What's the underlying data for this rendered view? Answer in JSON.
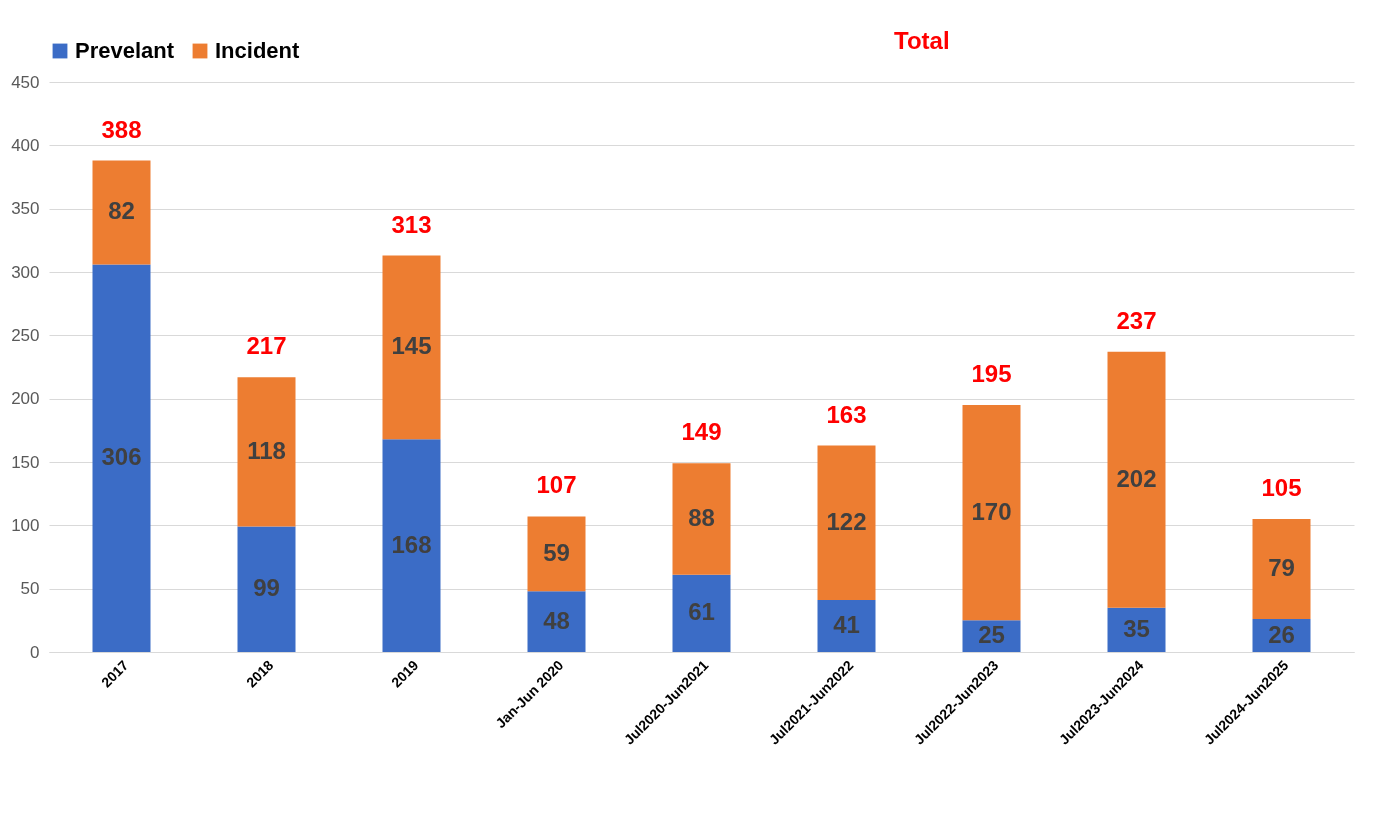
{
  "chart_data": {
    "type": "bar",
    "stacked": true,
    "categories": [
      "2017",
      "2018",
      "2019",
      "Jan-Jun 2020",
      "Jul2020-Jun2021",
      "Jul2021-Jun2022",
      "Jul2022-Jun2023",
      "Jul2023-Jun2024",
      "Jul2024-Jun2025"
    ],
    "series": [
      {
        "name": "Prevelant",
        "color": "#3b6cc6",
        "values": [
          306,
          99,
          168,
          48,
          61,
          41,
          25,
          35,
          26
        ]
      },
      {
        "name": "Incident",
        "color": "#ed7d31",
        "values": [
          82,
          118,
          145,
          59,
          88,
          122,
          170,
          202,
          79
        ]
      }
    ],
    "totals": [
      "388",
      "217",
      "313",
      "107",
      "149",
      "163",
      "195",
      "237",
      "105"
    ],
    "annotations": [
      "Total"
    ],
    "data_labels": true,
    "ylim": [
      0,
      450
    ],
    "yticks": [
      0,
      50,
      100,
      150,
      200,
      250,
      300,
      350,
      400,
      450
    ],
    "grid": "y",
    "legend": "top"
  }
}
